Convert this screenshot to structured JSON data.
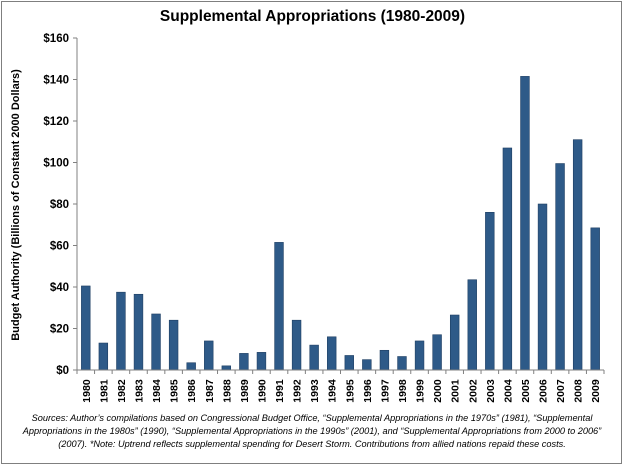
{
  "chart_data": {
    "type": "bar",
    "title": "Supplemental Appropriations (1980-2009)",
    "xlabel": "",
    "ylabel": "Budget Authority (Billions of Constant 2000 Dollars)",
    "ylim": [
      0,
      160
    ],
    "yticks": [
      "$0",
      "$20",
      "$40",
      "$60",
      "$80",
      "$100",
      "$120",
      "$140",
      "$160"
    ],
    "categories": [
      "1980",
      "1981",
      "1982",
      "1983",
      "1984",
      "1985",
      "1986",
      "1987",
      "1988",
      "1989",
      "1990",
      "1991",
      "1992",
      "1993",
      "1994",
      "1995",
      "1996",
      "1997",
      "1998",
      "1999",
      "2000",
      "2001",
      "2002",
      "2003",
      "2004",
      "2005",
      "2006",
      "2007",
      "2008",
      "2009"
    ],
    "values": [
      40.5,
      13,
      37.5,
      36.5,
      27,
      24,
      3.5,
      14,
      2,
      8,
      8.5,
      61.5,
      24,
      12,
      16,
      7,
      5,
      9.5,
      6.5,
      14,
      17,
      26.5,
      43.5,
      76,
      107,
      141.5,
      80,
      99.5,
      111,
      68.5
    ],
    "grid": false,
    "legend": "none",
    "bar_color": "#2e5a88"
  },
  "footnote": "Sources: Author’s compilations based on Congressional Budget Office, “Supplemental Appropriations in the 1970s” (1981), “Supplemental Appropriations in the 1980s” (1990), “Supplemental Appropriations in the 1990s” (2001), and “Supplemental Appropriations from 2000 to 2006” (2007). *Note: Uptrend reflects supplemental spending for Desert Storm. Contributions from allied nations repaid these costs."
}
